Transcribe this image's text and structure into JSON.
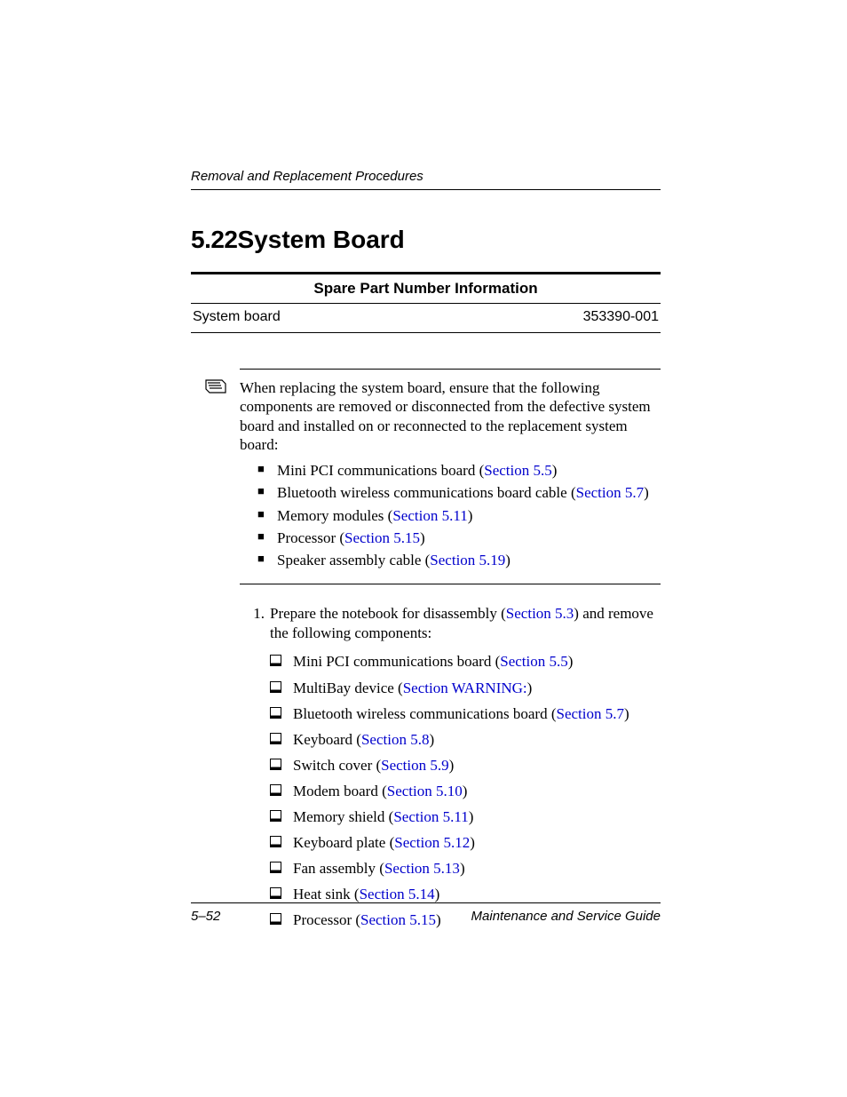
{
  "header": {
    "running_title": "Removal and Replacement Procedures"
  },
  "section": {
    "number": "5.22",
    "title": "System Board"
  },
  "spare_table": {
    "title": "Spare Part Number Information",
    "item_label": "System board",
    "part_number": "353390-001"
  },
  "note": {
    "intro": "When replacing the system board, ensure that the following components are removed or disconnected from the defective system board and installed on or reconnected to the replacement system board:",
    "items": [
      {
        "text_pre": "Mini PCI communications board (",
        "link": "Section 5.5",
        "text_post": ")"
      },
      {
        "text_pre": "Bluetooth wireless communications board cable (",
        "link": "Section 5.7",
        "text_post": ")"
      },
      {
        "text_pre": "Memory modules (",
        "link": "Section 5.11",
        "text_post": ")"
      },
      {
        "text_pre": "Processor (",
        "link": "Section 5.15",
        "text_post": ")"
      },
      {
        "text_pre": "Speaker assembly cable (",
        "link": "Section 5.19",
        "text_post": ")"
      }
    ]
  },
  "step": {
    "number": "1.",
    "text_pre": "Prepare the notebook for disassembly (",
    "link": "Section 5.3",
    "text_post": ") and remove the following components:",
    "items": [
      {
        "text_pre": "Mini PCI communications board (",
        "link": "Section 5.5",
        "text_post": ")"
      },
      {
        "text_pre": "MultiBay device (",
        "link": "Section WARNING:",
        "text_post": ")"
      },
      {
        "text_pre": "Bluetooth wireless communications board (",
        "link": "Section 5.7",
        "text_post": ")"
      },
      {
        "text_pre": "Keyboard (",
        "link": "Section 5.8",
        "text_post": ")"
      },
      {
        "text_pre": "Switch cover (",
        "link": "Section 5.9",
        "text_post": ")"
      },
      {
        "text_pre": "Modem board (",
        "link": "Section 5.10",
        "text_post": ")"
      },
      {
        "text_pre": "Memory shield (",
        "link": "Section 5.11",
        "text_post": ")"
      },
      {
        "text_pre": "Keyboard plate (",
        "link": "Section 5.12",
        "text_post": ")"
      },
      {
        "text_pre": "Fan assembly (",
        "link": "Section 5.13",
        "text_post": ")"
      },
      {
        "text_pre": "Heat sink (",
        "link": "Section 5.14",
        "text_post": ")"
      },
      {
        "text_pre": "Processor (",
        "link": "Section 5.15",
        "text_post": ")"
      }
    ]
  },
  "footer": {
    "page_number": "5–52",
    "doc_title": "Maintenance and Service Guide"
  },
  "colors": {
    "link": "#0000cc",
    "text": "#000000",
    "background": "#ffffff"
  }
}
